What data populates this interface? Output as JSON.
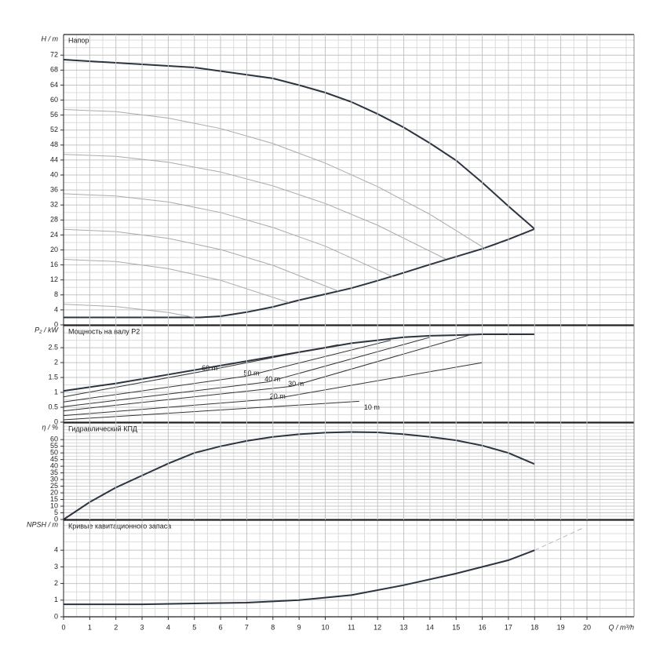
{
  "chart_data": [
    {
      "type": "line",
      "title": "Напор",
      "y_label": "H / m",
      "xlim": [
        0,
        21.8
      ],
      "ylim": [
        0,
        77.5
      ],
      "yticks": [
        0,
        4,
        8,
        12,
        16,
        20,
        24,
        28,
        32,
        36,
        40,
        44,
        48,
        52,
        56,
        60,
        64,
        68,
        72
      ],
      "series": [
        {
          "color": "#2b3440",
          "x": [
            0,
            5,
            8,
            9,
            10,
            11,
            12,
            13,
            14,
            15,
            16,
            17,
            18
          ],
          "values": [
            70.8,
            68.7,
            65.8,
            64,
            62,
            59.5,
            56.3,
            52.7,
            48.5,
            43.9,
            38,
            31.7,
            25.6
          ]
        },
        {
          "color": "#2b3440",
          "x": [
            0,
            5.2,
            6,
            7,
            8,
            9,
            10,
            11,
            12,
            13,
            14,
            15,
            16,
            17,
            18
          ],
          "values": [
            2,
            2,
            2.3,
            3.4,
            4.8,
            6.6,
            8.2,
            9.8,
            11.8,
            13.9,
            16.1,
            18.2,
            20.3,
            22.8,
            25.6
          ]
        },
        {
          "color": "#aaaaaa",
          "x": [
            0,
            2,
            4,
            6,
            8,
            10,
            12,
            14,
            16.1
          ],
          "values": [
            57.5,
            56.9,
            55.2,
            52.4,
            48.4,
            43.2,
            36.9,
            29.5,
            20.4
          ]
        },
        {
          "color": "#aaaaaa",
          "x": [
            0,
            2,
            4,
            6,
            8,
            10,
            12,
            14.6
          ],
          "values": [
            45.5,
            45,
            43.4,
            40.8,
            37.1,
            32.4,
            26.6,
            17.6
          ]
        },
        {
          "color": "#aaaaaa",
          "x": [
            0,
            2,
            4,
            6,
            8,
            10,
            12.6
          ],
          "values": [
            35,
            34.4,
            32.8,
            30,
            26,
            21,
            12.8
          ]
        },
        {
          "color": "#aaaaaa",
          "x": [
            0,
            2,
            4,
            6,
            8,
            10.5
          ],
          "values": [
            25.5,
            24.9,
            23.1,
            20.1,
            15.9,
            9
          ]
        },
        {
          "color": "#aaaaaa",
          "x": [
            0,
            2,
            4,
            6,
            8.6
          ],
          "values": [
            17.5,
            16.9,
            15,
            11.9,
            6
          ]
        },
        {
          "color": "#aaaaaa",
          "x": [
            0,
            2,
            4,
            5
          ],
          "values": [
            5.5,
            4.9,
            3.3,
            2
          ]
        }
      ]
    },
    {
      "type": "line",
      "title": "Мощность на валу P2",
      "y_label": "P₂ / kW",
      "xlim": [
        0,
        21.8
      ],
      "ylim": [
        0,
        3.24
      ],
      "yticks": [
        0,
        0.5,
        1,
        1.5,
        2,
        2.5
      ],
      "series": [
        {
          "color": "#2b3440",
          "x": [
            0,
            2,
            4,
            6,
            8,
            10,
            11,
            12,
            13,
            14,
            15,
            16,
            18
          ],
          "values": [
            1.05,
            1.3,
            1.6,
            1.9,
            2.2,
            2.5,
            2.65,
            2.75,
            2.85,
            2.9,
            2.92,
            2.95,
            2.95
          ]
        },
        {
          "name": "60 m",
          "color": "#333333",
          "x": [
            0,
            5.4,
            10.5
          ],
          "values": [
            0.85,
            1.72,
            2.6
          ]
        },
        {
          "name": "50 m",
          "color": "#333333",
          "x": [
            0,
            7,
            12.5
          ],
          "values": [
            0.68,
            1.55,
            2.75
          ]
        },
        {
          "name": "40 m",
          "color": "#333333",
          "x": [
            0,
            7.8,
            14
          ],
          "values": [
            0.52,
            1.35,
            2.85
          ]
        },
        {
          "name": "30 m",
          "color": "#333333",
          "x": [
            0,
            8.7,
            15.5
          ],
          "values": [
            0.38,
            1.2,
            2.92
          ]
        },
        {
          "name": "20 m",
          "color": "#333333",
          "x": [
            0,
            8,
            16
          ],
          "values": [
            0.22,
            0.78,
            2
          ]
        },
        {
          "name": "10 m",
          "color": "#333333",
          "x": [
            0,
            11.3
          ],
          "values": [
            0.08,
            0.7
          ]
        }
      ]
    },
    {
      "type": "line",
      "title": "Гидравлический КПД",
      "y_label": "η / %",
      "xlim": [
        0,
        21.8
      ],
      "ylim": [
        0,
        72.5
      ],
      "yticks": [
        0,
        5,
        10,
        15,
        20,
        25,
        30,
        35,
        40,
        45,
        50,
        55,
        60
      ],
      "series": [
        {
          "color": "#2b3440",
          "x": [
            0,
            1,
            2,
            3,
            4,
            5,
            6,
            7,
            8,
            9,
            10,
            11,
            12,
            13,
            14,
            15,
            16,
            17,
            18
          ],
          "values": [
            0,
            13,
            24,
            33,
            42,
            50,
            55,
            59,
            62,
            64,
            65.2,
            65.7,
            65.4,
            64,
            62,
            59.5,
            55.5,
            50,
            41.6
          ]
        }
      ]
    },
    {
      "type": "line",
      "title": "Кривые кавитационного запаса",
      "y_label": "NPSH / m",
      "x_label": "Q / m³/h",
      "xlim": [
        0,
        21.8
      ],
      "ylim": [
        0,
        5.8
      ],
      "yticks": [
        0,
        1,
        2,
        3,
        4
      ],
      "xticks": [
        0,
        1,
        2,
        3,
        4,
        5,
        6,
        7,
        8,
        9,
        10,
        11,
        12,
        13,
        14,
        15,
        16,
        17,
        18,
        19,
        20
      ],
      "series": [
        {
          "color": "#2b3440",
          "x": [
            0,
            3,
            5,
            7,
            9,
            11,
            13,
            15,
            17,
            18
          ],
          "values": [
            0.75,
            0.75,
            0.8,
            0.85,
            1,
            1.3,
            1.9,
            2.6,
            3.4,
            4
          ]
        },
        {
          "color": "#bbbbbb",
          "dashed": true,
          "x": [
            18,
            19.8
          ],
          "values": [
            4,
            5.3
          ]
        }
      ]
    }
  ]
}
